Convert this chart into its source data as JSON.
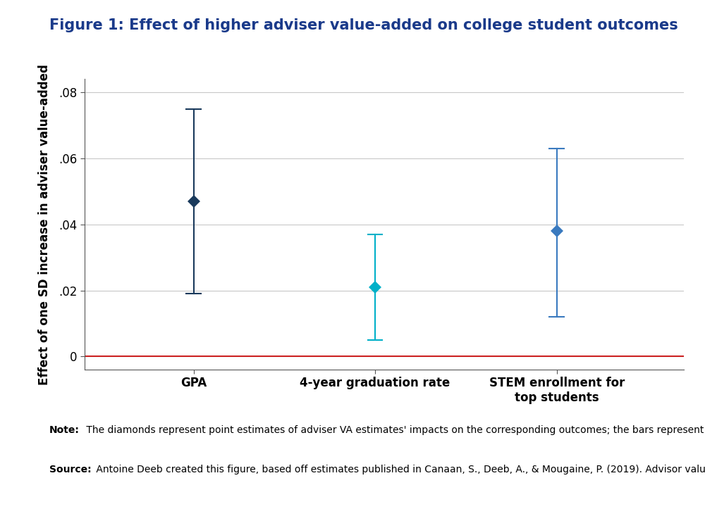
{
  "title": "Figure 1: Effect of higher adviser value-added on college student outcomes",
  "ylabel": "Effect of one SD increase in adviser value-added",
  "categories": [
    "GPA",
    "4-year graduation rate",
    "STEM enrollment for\ntop students"
  ],
  "x_positions": [
    1,
    2,
    3
  ],
  "estimates": [
    0.047,
    0.021,
    0.038
  ],
  "ci_lower": [
    0.019,
    0.005,
    0.012
  ],
  "ci_upper": [
    0.075,
    0.037,
    0.063
  ],
  "colors": [
    "#1a3a5c",
    "#00b0c8",
    "#3a7abf"
  ],
  "ylim": [
    -0.004,
    0.084
  ],
  "yticks": [
    0,
    0.02,
    0.04,
    0.06,
    0.08
  ],
  "ytick_labels": [
    "0",
    ".02",
    ".04",
    ".06",
    ".08"
  ],
  "zero_line_color": "#cc2222",
  "grid_color": "#c8c8c8",
  "background_color": "#ffffff",
  "title_color": "#1a3a8a",
  "title_fontsize": 15,
  "note_label": "Note:",
  "note_body": " The diamonds represent point estimates of adviser VA estimates' impacts on the corresponding outcomes; the bars represent confidence intervals.",
  "source_label": "Source:",
  "source_body": " Antoine Deeb created this figure, based off estimates published in Canaan, S., Deeb, A., & Mougaine, P. (2019). Advisor value-added and student outcomes: Evidence from randomly assigned college advisors."
}
